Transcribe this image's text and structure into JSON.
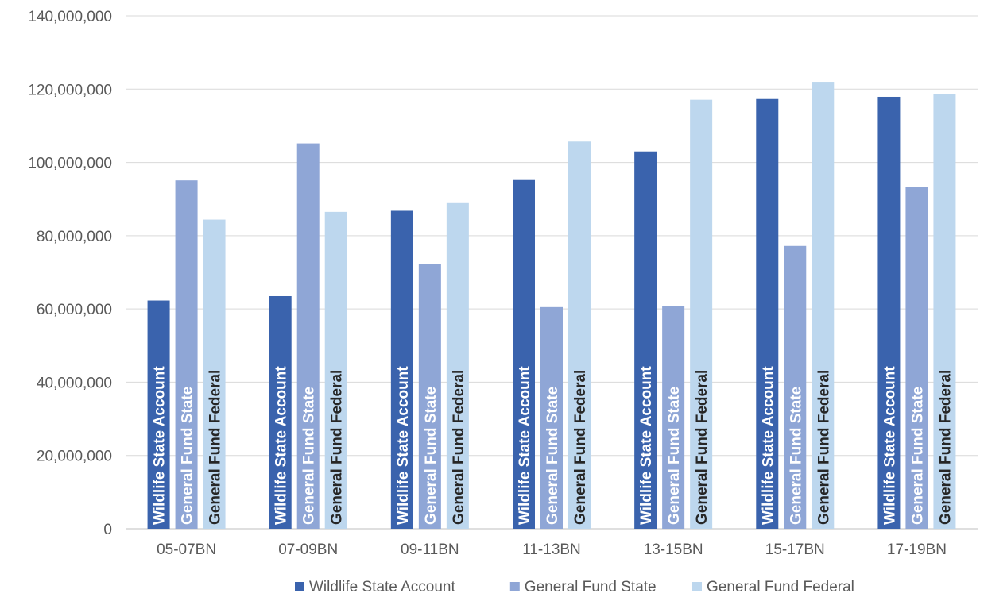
{
  "chart_data": {
    "type": "bar",
    "title": "",
    "xlabel": "",
    "ylabel": "",
    "categories": [
      "05-07BN",
      "07-09BN",
      "09-11BN",
      "11-13BN",
      "13-15BN",
      "15-17BN",
      "17-19BN"
    ],
    "series": [
      {
        "name": "Wildlife State Account",
        "color": "#3a63ad",
        "label_color": "#ffffff",
        "values": [
          62300000,
          63500000,
          86800000,
          95200000,
          103000000,
          117300000,
          117900000
        ]
      },
      {
        "name": "General Fund State",
        "color": "#8fa6d6",
        "label_color": "#ffffff",
        "values": [
          95100000,
          105200000,
          72200000,
          60500000,
          60700000,
          77200000,
          93200000
        ]
      },
      {
        "name": "General Fund Federal",
        "color": "#bdd7ee",
        "label_color": "#262626",
        "values": [
          84400000,
          86500000,
          88900000,
          105700000,
          117100000,
          122000000,
          118600000
        ]
      }
    ],
    "ylim": [
      0,
      140000000
    ],
    "y_ticks": [
      0,
      20000000,
      40000000,
      60000000,
      80000000,
      100000000,
      120000000,
      140000000
    ],
    "y_tick_labels": [
      "0",
      "20,000,000",
      "40,000,000",
      "60,000,000",
      "80,000,000",
      "100,000,000",
      "120,000,000",
      "140,000,000"
    ],
    "grid": true,
    "legend_position": "bottom",
    "data_labels": "series-name-rotated"
  }
}
